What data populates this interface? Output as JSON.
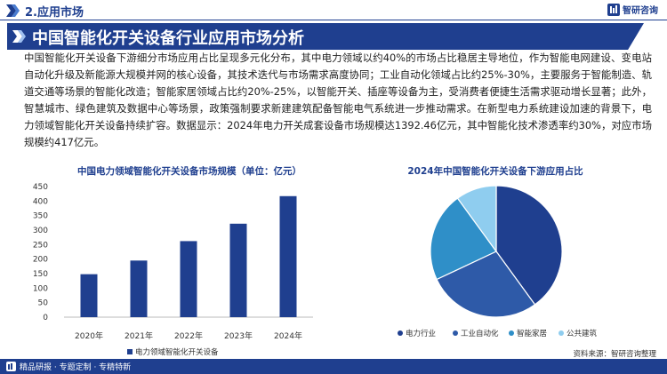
{
  "header": {
    "section_label": "2.应用市场",
    "brand_name": "智研咨询"
  },
  "title": "中国智能化开关设备行业应用市场分析",
  "body_text": "中国智能化开关设备下游细分市场应用占比呈现多元化分布，其中电力领域以约40%的市场占比稳居主导地位，作为智能电网建设、变电站自动化升级及新能源大规模并网的核心设备，其技术迭代与市场需求高度协同；工业自动化领域占比约25%-30%，主要服务于智能制造、轨道交通等场景的智能化改造；智能家居领域占比约20%-25%，以智能开关、插座等设备为主，受消费者便捷生活需求驱动增长显著；此外，智慧城市、绿色建筑及数据中心等场景，政策强制要求新建建筑配备智能电气系统进一步推动需求。在新型电力系统建设加速的背景下，电力领域智能化开关设备持续扩容。数据显示：2024年电力开关成套设备市场规模达1392.46亿元，其中智能化技术渗透率约30%，对应市场规模约417亿元。",
  "chart_data": [
    {
      "type": "bar",
      "title": "中国电力领域智能化开关设备市场规模（单位：亿元）",
      "categories": [
        "2020年",
        "2021年",
        "2022年",
        "2023年",
        "2024年"
      ],
      "series": [
        {
          "name": "电力领域智能化开关设备",
          "values": [
            148,
            195,
            262,
            322,
            417
          ]
        }
      ],
      "ylim": [
        0,
        450
      ],
      "yticks": [
        0,
        50,
        100,
        150,
        200,
        250,
        300,
        350,
        400,
        450
      ],
      "grid": false,
      "legend": "bottom",
      "color": "#1f3f8f"
    },
    {
      "type": "pie",
      "title": "2024年中国智能化开关设备下游应用占比",
      "labels": [
        "电力行业",
        "工业自动化",
        "智能家居",
        "公共建筑"
      ],
      "values": [
        40,
        28,
        22,
        10
      ],
      "colors": [
        "#1f3f8f",
        "#2e5aa8",
        "#2f8fc8",
        "#8fcdef"
      ],
      "legend": "bottom"
    }
  ],
  "footer": {
    "tagline": "精品研报 · 专题定制 · 专精特新",
    "source": "资料来源：智研咨询整理"
  }
}
